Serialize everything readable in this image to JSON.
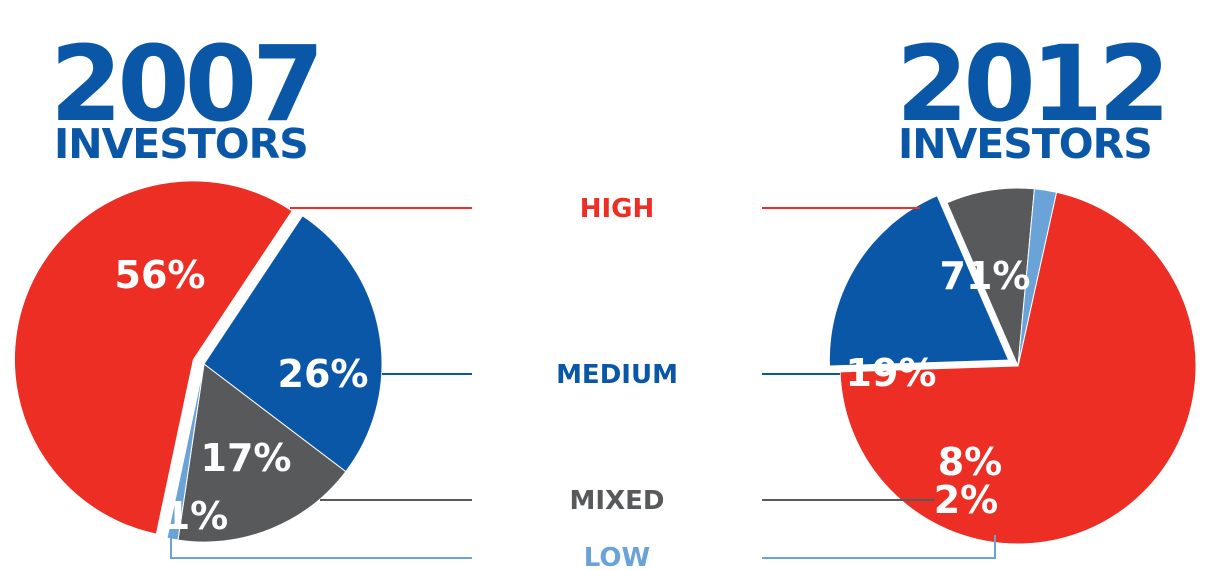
{
  "chart_data": [
    {
      "type": "pie",
      "title": "2007",
      "subtitle": "INVESTORS",
      "slices": [
        {
          "label": "HIGH",
          "value": 56,
          "display": "56%",
          "color": "#ec2e25"
        },
        {
          "label": "MEDIUM",
          "value": 26,
          "display": "26%",
          "color": "#0a57a8"
        },
        {
          "label": "MIXED",
          "value": 17,
          "display": "17%",
          "color": "#58595b"
        },
        {
          "label": "LOW",
          "value": 1,
          "display": "1%",
          "color": "#6aa3d8"
        }
      ]
    },
    {
      "type": "pie",
      "title": "2012",
      "subtitle": "INVESTORS",
      "slices": [
        {
          "label": "HIGH",
          "value": 71,
          "display": "71%",
          "color": "#ec2e25"
        },
        {
          "label": "MEDIUM",
          "value": 19,
          "display": "19%",
          "color": "#0a57a8"
        },
        {
          "label": "MIXED",
          "value": 8,
          "display": "8%",
          "color": "#58595b"
        },
        {
          "label": "LOW",
          "value": 2,
          "display": "2%",
          "color": "#6aa3d8"
        }
      ]
    }
  ],
  "legend": [
    {
      "label": "HIGH",
      "color": "#ec2e25"
    },
    {
      "label": "MEDIUM",
      "color": "#0a57a8"
    },
    {
      "label": "MIXED",
      "color": "#58595b"
    },
    {
      "label": "LOW",
      "color": "#6aa3d8"
    }
  ]
}
